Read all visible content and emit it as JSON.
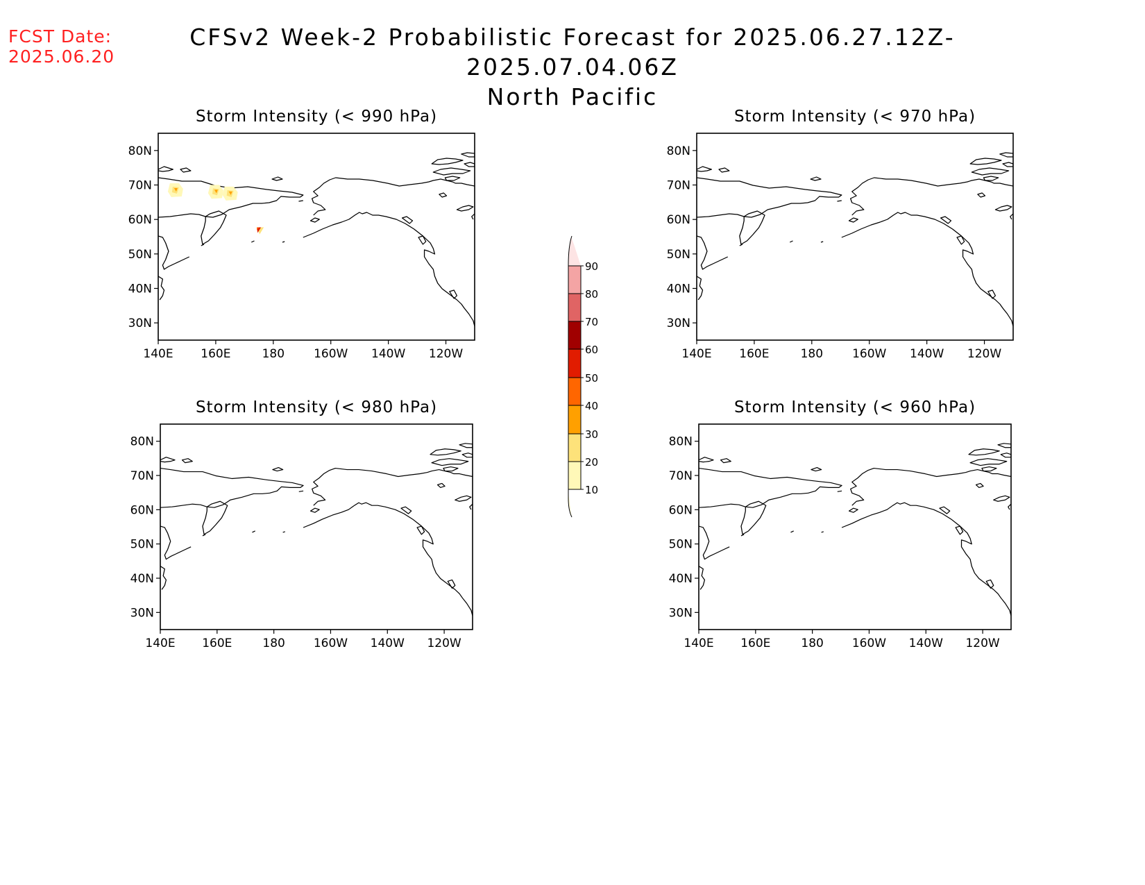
{
  "fcst": {
    "label": "FCST Date:",
    "date": "2025.06.20"
  },
  "title": {
    "line1": "CFSv2 Week-2 Probabilistic Forecast for 2025.06.27.12Z-2025.07.04.06Z",
    "line2": "North Pacific"
  },
  "panels": [
    {
      "title": "Storm Intensity (< 990 hPa)"
    },
    {
      "title": "Storm Intensity (< 970 hPa)"
    },
    {
      "title": "Storm Intensity (< 980 hPa)"
    },
    {
      "title": "Storm Intensity (< 960 hPa)"
    }
  ],
  "axes": {
    "lat_ticks": [
      "80N",
      "70N",
      "60N",
      "50N",
      "40N",
      "30N"
    ],
    "lon_ticks": [
      "140E",
      "160E",
      "180",
      "160W",
      "140W",
      "120W"
    ]
  },
  "colorbar": {
    "levels": [
      "10",
      "20",
      "30",
      "40",
      "50",
      "60",
      "70",
      "80",
      "90"
    ],
    "colors": [
      "#fff8b8",
      "#fde27a",
      "#ffa000",
      "#ff6600",
      "#e11c00",
      "#a00000",
      "#e06464",
      "#f4a4a4",
      "#fde4e4"
    ]
  },
  "blobs": [
    {
      "panel": 0,
      "lon": 146,
      "lat": 68.5,
      "level": 10
    },
    {
      "panel": 0,
      "lon": 160,
      "lat": 68,
      "level": 10
    },
    {
      "panel": 0,
      "lon": 165,
      "lat": 67.5,
      "level": 10
    },
    {
      "panel": 0,
      "lon": 175.5,
      "lat": 56.5,
      "level": 40
    }
  ]
}
